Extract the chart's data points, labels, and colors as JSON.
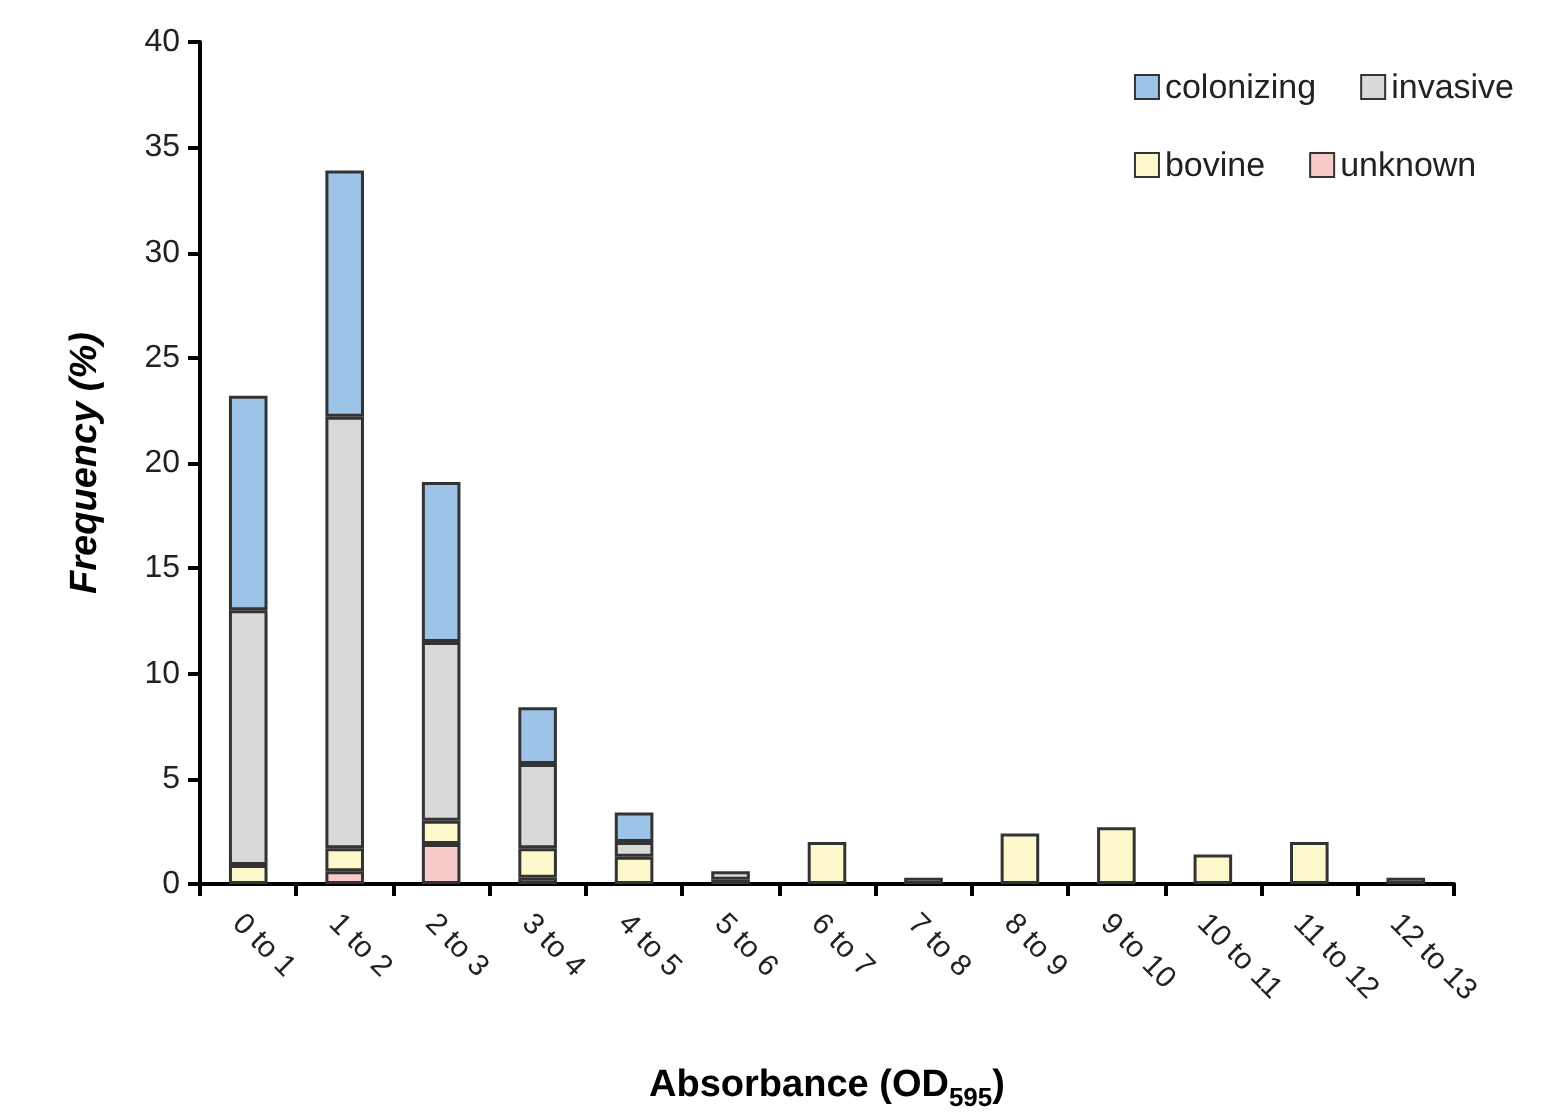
{
  "chart_data": {
    "type": "bar",
    "stacked": true,
    "xlabel": "Absorbance (OD$_{595}$)",
    "ylabel": "Frequency (%)",
    "categories": [
      "0 to 1",
      "1 to 2",
      "2 to 3",
      "3 to 4",
      "4 to 5",
      "5 to 6",
      "6 to 7",
      "7 to 8",
      "8 to 9",
      "9 to 10",
      "10 to 11",
      "11 to 12",
      "12 to 13"
    ],
    "series": [
      {
        "name": "unknown",
        "color": "#f8cbcb",
        "values": [
          null,
          0.6,
          1.9,
          0.3,
          null,
          null,
          null,
          null,
          null,
          null,
          null,
          null,
          null
        ]
      },
      {
        "name": "bovine",
        "color": "#fcf8cc",
        "values": [
          0.9,
          1.1,
          1.1,
          1.4,
          1.3,
          0.2,
          2.0,
          0.3,
          2.4,
          2.7,
          1.4,
          2.0,
          0.3
        ]
      },
      {
        "name": "invasive",
        "color": "#d9d9d9",
        "values": [
          12.1,
          20.5,
          8.5,
          4.0,
          0.7,
          0.4,
          null,
          null,
          null,
          null,
          null,
          null,
          null
        ]
      },
      {
        "name": "colonizing",
        "color": "#9dc3e6",
        "values": [
          10.2,
          11.7,
          7.6,
          2.7,
          1.4,
          null,
          null,
          null,
          null,
          null,
          null,
          null,
          null
        ]
      }
    ],
    "ylim": [
      0,
      40
    ],
    "yticks": [
      0,
      5,
      10,
      15,
      20,
      25,
      30,
      35,
      40
    ],
    "grid": false,
    "legend": "top right"
  }
}
